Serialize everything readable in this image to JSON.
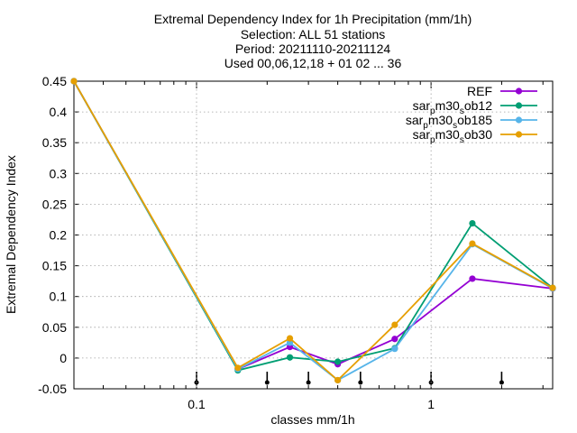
{
  "chart_data": {
    "type": "line",
    "title_lines": [
      "Extremal Dependency Index  for 1h Precipitation (mm/1h)",
      "Selection: ALL      51 stations",
      "Period: 20211110-20211124",
      "Used 00,06,12,18 + 01 02 ... 36"
    ],
    "xlabel": "classes mm/1h",
    "ylabel": "Extremal Dependency Index",
    "xscale": "log",
    "xlim": [
      0.03,
      3.3
    ],
    "ylim": [
      -0.05,
      0.45
    ],
    "yticks": [
      "-0.05",
      "0",
      "0.05",
      "0.1",
      "0.15",
      "0.2",
      "0.25",
      "0.3",
      "0.35",
      "0.4",
      "0.45"
    ],
    "xticks": [
      "0.1",
      "1"
    ],
    "legend_position": "top-right",
    "x": [
      0.03,
      0.15,
      0.25,
      0.4,
      0.7,
      1.5,
      3.3
    ],
    "bottom_markers_x": [
      0.1,
      0.2,
      0.3,
      0.5,
      1.0,
      2.0
    ],
    "series": [
      {
        "label": "REF",
        "base": "REF",
        "sub": "",
        "sub2": "",
        "tail": "",
        "color": "#9400d3",
        "values": [
          0.45,
          -0.018,
          0.018,
          -0.01,
          0.031,
          0.129,
          0.113
        ]
      },
      {
        "label": "sar_pm30_sob12",
        "base": "sar",
        "sub": "p",
        "mid": "m30",
        "sub2": "s",
        "tail": "ob12",
        "color": "#009e73",
        "values": [
          0.45,
          -0.02,
          0.001,
          -0.006,
          0.016,
          0.219,
          0.114
        ]
      },
      {
        "label": "sar_pm30_sob185",
        "base": "sar",
        "sub": "p",
        "mid": "m30",
        "sub2": "s",
        "tail": "ob185",
        "color": "#56b4e9",
        "values": [
          0.45,
          -0.018,
          0.025,
          -0.036,
          0.015,
          0.185,
          0.113
        ]
      },
      {
        "label": "sar_pm30_sob30",
        "base": "sar",
        "sub": "p",
        "mid": "m30",
        "sub2": "s",
        "tail": "ob30",
        "color": "#e69f00",
        "values": [
          0.45,
          -0.016,
          0.032,
          -0.036,
          0.054,
          0.186,
          0.114
        ]
      }
    ]
  }
}
